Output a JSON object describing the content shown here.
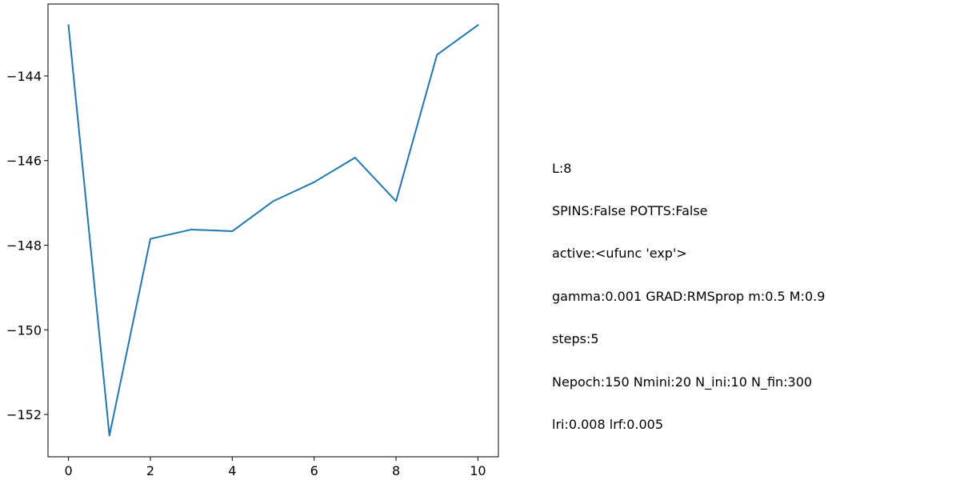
{
  "chart_data": {
    "type": "line",
    "title": "",
    "xlabel": "",
    "ylabel": "",
    "x": [
      0,
      1,
      2,
      3,
      4,
      5,
      6,
      7,
      8,
      9,
      10
    ],
    "series": [
      {
        "values": [
          -142.8,
          -152.5,
          -147.85,
          -147.63,
          -147.67,
          -146.96,
          -146.51,
          -145.93,
          -146.96,
          -143.5,
          -142.8
        ],
        "color": "#1f77b4"
      }
    ],
    "xlim": [
      -0.5,
      10.5
    ],
    "ylim": [
      -153.0,
      -142.3
    ],
    "xticks": [
      0,
      2,
      4,
      6,
      8,
      10
    ],
    "yticks": [
      -152,
      -150,
      -148,
      -146,
      -144
    ],
    "xtick_labels": [
      "0",
      "2",
      "4",
      "6",
      "8",
      "10"
    ],
    "ytick_labels": [
      "−152",
      "−150",
      "−148",
      "−146",
      "−144"
    ],
    "grid": false,
    "legend": "none"
  },
  "annotation": {
    "lines": [
      "L:8",
      "SPINS:False POTTS:False",
      "active:<ufunc 'exp'>",
      "gamma:0.001 GRAD:RMSprop m:0.5 M:0.9",
      "steps:5",
      "Nepoch:150 Nmini:20 N_ini:10 N_fin:300",
      "lri:0.008 lrf:0.005"
    ]
  }
}
